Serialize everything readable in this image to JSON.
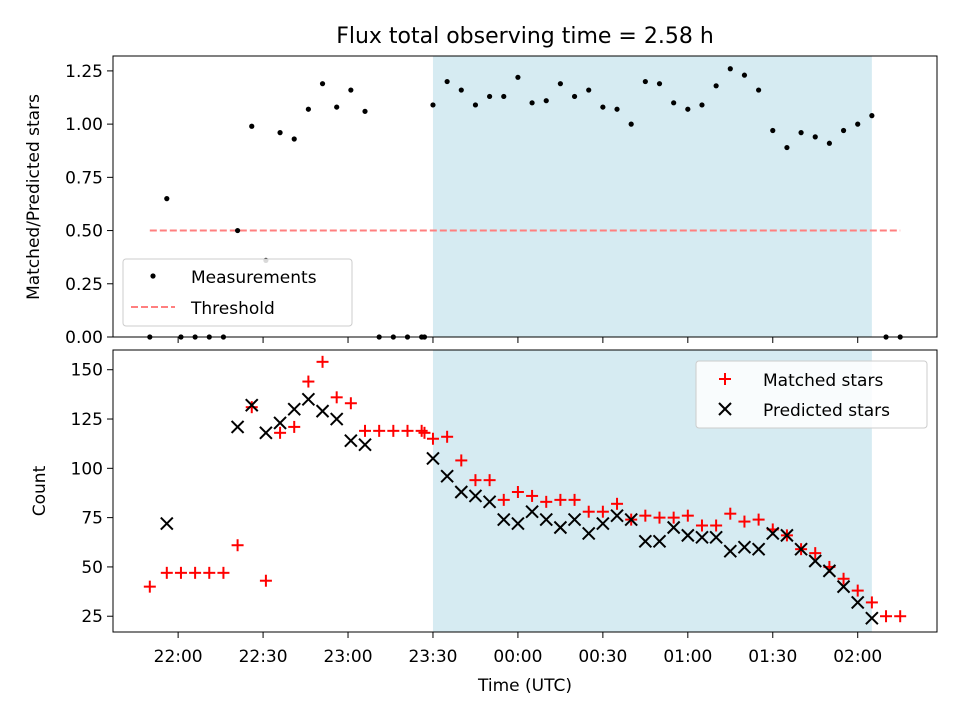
{
  "figure": {
    "title": "Flux total observing time = 2.58 h",
    "xlabel": "Time (UTC)",
    "x_ticks": [
      "22:00",
      "22:30",
      "23:00",
      "23:30",
      "00:00",
      "00:30",
      "01:00",
      "01:30",
      "02:00"
    ],
    "x_tick_minutes": [
      1320,
      1350,
      1380,
      1410,
      1440,
      1470,
      1500,
      1530,
      1560
    ],
    "xlim_minutes": [
      1297,
      1588
    ],
    "shaded_span_minutes": [
      1410,
      1565
    ],
    "shade_color": "#add8e6"
  },
  "chart_data": [
    {
      "type": "scatter",
      "title": "Flux total observing time = 2.58 h",
      "ylabel": "Matched/Predicted stars",
      "xlabel": "",
      "ylim": [
        0,
        1.32
      ],
      "y_ticks": [
        "0.00",
        "0.25",
        "0.50",
        "0.75",
        "1.00",
        "1.25"
      ],
      "y_tick_values": [
        0,
        0.25,
        0.5,
        0.75,
        1.0,
        1.25
      ],
      "legend_position": "lower-left",
      "series": [
        {
          "name": "Measurements",
          "color": "#000000",
          "marker": "dot",
          "x_minutes": [
            1310,
            1316,
            1321,
            1326,
            1331,
            1336,
            1341,
            1346,
            1351,
            1356,
            1361,
            1366,
            1371,
            1376,
            1381,
            1386,
            1391,
            1396,
            1401,
            1406,
            1407,
            1410,
            1415,
            1420,
            1425,
            1430,
            1435,
            1440,
            1445,
            1450,
            1455,
            1460,
            1465,
            1470,
            1475,
            1480,
            1485,
            1490,
            1495,
            1500,
            1505,
            1510,
            1515,
            1520,
            1525,
            1530,
            1535,
            1540,
            1545,
            1550,
            1555,
            1560,
            1565,
            1570,
            1575
          ],
          "values": [
            0.0,
            0.65,
            0.0,
            0.0,
            0.0,
            0.0,
            0.5,
            0.99,
            0.36,
            0.96,
            0.93,
            1.07,
            1.19,
            1.08,
            1.16,
            1.06,
            0.0,
            0.0,
            0.0,
            0.0,
            0.0,
            1.09,
            1.2,
            1.16,
            1.09,
            1.13,
            1.13,
            1.22,
            1.1,
            1.11,
            1.19,
            1.13,
            1.16,
            1.08,
            1.07,
            1.0,
            1.2,
            1.19,
            1.1,
            1.07,
            1.09,
            1.18,
            1.26,
            1.23,
            1.16,
            0.97,
            0.89,
            0.96,
            0.94,
            0.91,
            0.97,
            1.0,
            1.04,
            0.0,
            0.0
          ]
        },
        {
          "name": "Threshold",
          "color": "#ff7f7f",
          "style": "dashed",
          "x_minutes": [
            1310,
            1575
          ],
          "values": [
            0.5,
            0.5
          ]
        }
      ]
    },
    {
      "type": "scatter",
      "ylabel": "Count",
      "xlabel": "Time (UTC)",
      "ylim": [
        17,
        160
      ],
      "y_ticks": [
        "25",
        "50",
        "75",
        "100",
        "125",
        "150"
      ],
      "y_tick_values": [
        25,
        50,
        75,
        100,
        125,
        150
      ],
      "legend_position": "upper-right",
      "series": [
        {
          "name": "Matched stars",
          "color": "#ff0000",
          "marker": "plus",
          "x_minutes": [
            1310,
            1316,
            1321,
            1326,
            1331,
            1336,
            1341,
            1346,
            1351,
            1356,
            1361,
            1366,
            1371,
            1376,
            1381,
            1386,
            1391,
            1396,
            1401,
            1406,
            1407,
            1410,
            1415,
            1420,
            1425,
            1430,
            1435,
            1440,
            1445,
            1450,
            1455,
            1460,
            1465,
            1470,
            1475,
            1480,
            1485,
            1490,
            1495,
            1500,
            1505,
            1510,
            1515,
            1520,
            1525,
            1530,
            1535,
            1540,
            1545,
            1550,
            1555,
            1560,
            1565,
            1570,
            1575
          ],
          "values": [
            40,
            47,
            47,
            47,
            47,
            47,
            61,
            131,
            43,
            118,
            121,
            144,
            154,
            136,
            133,
            119,
            119,
            119,
            119,
            119,
            118,
            115,
            116,
            104,
            94,
            94,
            84,
            88,
            86,
            83,
            84,
            84,
            78,
            78,
            82,
            74,
            76,
            75,
            75,
            76,
            71,
            71,
            77,
            73,
            74,
            69,
            66,
            59,
            57,
            50,
            44,
            38,
            32,
            25,
            25
          ]
        },
        {
          "name": "Predicted stars",
          "color": "#000000",
          "marker": "x",
          "x_minutes": [
            1316,
            1341,
            1346,
            1351,
            1356,
            1361,
            1366,
            1371,
            1376,
            1381,
            1386,
            1410,
            1415,
            1420,
            1425,
            1430,
            1435,
            1440,
            1445,
            1450,
            1455,
            1460,
            1465,
            1470,
            1475,
            1480,
            1485,
            1490,
            1495,
            1500,
            1505,
            1510,
            1515,
            1520,
            1525,
            1530,
            1535,
            1540,
            1545,
            1550,
            1555,
            1560,
            1565
          ],
          "values": [
            72,
            121,
            132,
            118,
            123,
            130,
            135,
            129,
            125,
            114,
            112,
            105,
            96,
            88,
            86,
            83,
            74,
            72,
            78,
            74,
            70,
            74,
            67,
            72,
            76,
            74,
            63,
            63,
            70,
            66,
            65,
            65,
            58,
            60,
            59,
            67,
            66,
            59,
            53,
            48,
            40,
            32,
            24
          ]
        }
      ]
    }
  ]
}
